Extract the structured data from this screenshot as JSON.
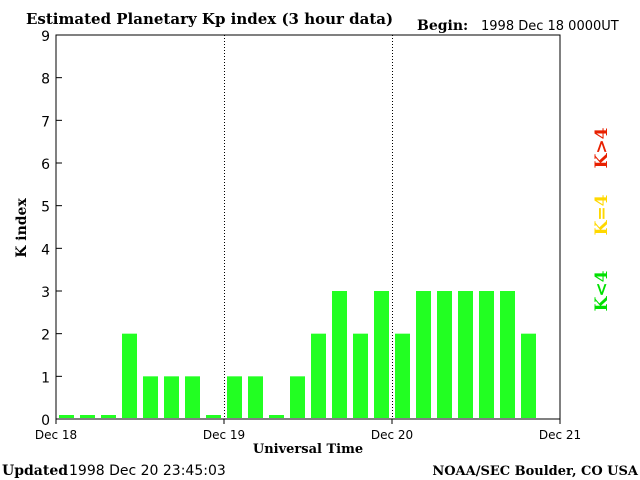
{
  "chart_data": {
    "type": "bar",
    "title": "Estimated Planetary Kp index (3 hour data)",
    "begin_label": "Begin:",
    "begin_value": "1998 Dec 18 0000UT",
    "ylabel": "K index",
    "xlabel": "Universal Time",
    "ylim": [
      0,
      9
    ],
    "yticks": [
      "0",
      "1",
      "2",
      "3",
      "4",
      "5",
      "6",
      "7",
      "8",
      "9"
    ],
    "x_tick_labels": [
      "Dec 18",
      "Dec 19",
      "Dec 20",
      "Dec 21"
    ],
    "values": [
      0,
      0,
      0,
      2,
      1,
      1,
      1,
      0,
      1,
      1,
      0,
      1,
      2,
      3,
      2,
      3,
      2,
      3,
      3,
      3,
      3,
      3,
      2
    ],
    "legend": [
      {
        "label": "K<4",
        "color": "#00e000"
      },
      {
        "label": "K=4",
        "color": "#ffd800"
      },
      {
        "label": "K>4",
        "color": "#e82000"
      }
    ],
    "bar_color": "#22ff22"
  },
  "footer": {
    "updated_label": "Updated",
    "updated_value": "1998 Dec 20 23:45:03",
    "source": "NOAA/SEC Boulder, CO USA"
  }
}
